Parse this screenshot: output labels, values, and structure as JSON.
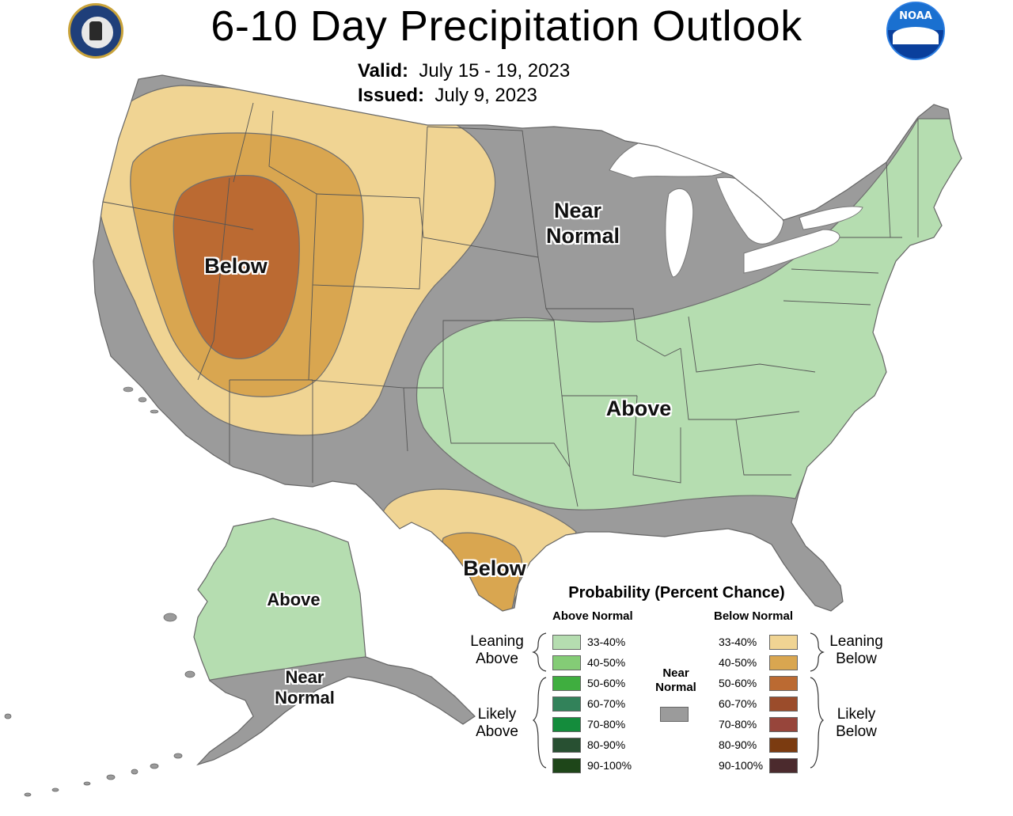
{
  "header": {
    "title": "6-10 Day Precipitation Outlook",
    "valid_label": "Valid:",
    "valid_value": "July 15 - 19, 2023",
    "issued_label": "Issued:",
    "issued_value": "July 9, 2023",
    "left_logo": "department-of-commerce-seal",
    "right_logo": "noaa-logo",
    "right_logo_text": "NOAA"
  },
  "map_labels": {
    "near_normal_conus": "Near\nNormal",
    "below_west": "Below",
    "above_east": "Above",
    "below_texas": "Below",
    "above_alaska": "Above",
    "near_normal_alaska": "Near\nNormal"
  },
  "legend": {
    "title": "Probability (Percent Chance)",
    "above_header": "Above Normal",
    "below_header": "Below Normal",
    "near_normal_label": "Near\nNormal",
    "near_normal_color": "#9b9b9b",
    "leaning_above": "Leaning\nAbove",
    "likely_above": "Likely\nAbove",
    "leaning_below": "Leaning\nBelow",
    "likely_below": "Likely\nBelow",
    "above": [
      {
        "range": "33-40%",
        "color": "#b5ddb0"
      },
      {
        "range": "40-50%",
        "color": "#84cc76"
      },
      {
        "range": "50-60%",
        "color": "#3fae3f"
      },
      {
        "range": "60-70%",
        "color": "#32825a"
      },
      {
        "range": "70-80%",
        "color": "#148c3c"
      },
      {
        "range": "80-90%",
        "color": "#285032"
      },
      {
        "range": "90-100%",
        "color": "#1e4619"
      }
    ],
    "below": [
      {
        "range": "33-40%",
        "color": "#f0d493"
      },
      {
        "range": "40-50%",
        "color": "#d9a650"
      },
      {
        "range": "50-60%",
        "color": "#bb6a32"
      },
      {
        "range": "60-70%",
        "color": "#9b4c2b"
      },
      {
        "range": "70-80%",
        "color": "#97453b"
      },
      {
        "range": "80-90%",
        "color": "#7b3b10"
      },
      {
        "range": "90-100%",
        "color": "#4b2a2d"
      }
    ]
  },
  "colors": {
    "near_normal": "#9b9b9b",
    "lakes": "#ffffff",
    "state_lines": "#555555"
  }
}
